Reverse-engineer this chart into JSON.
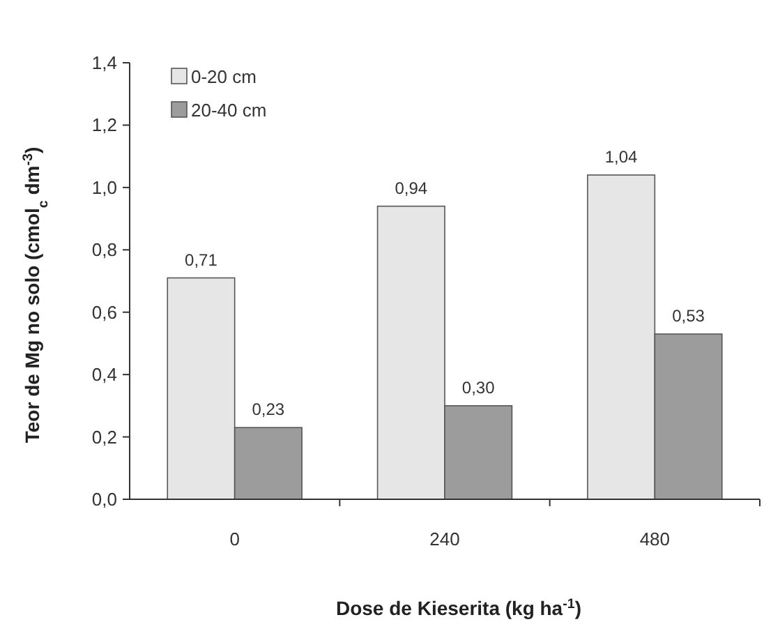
{
  "chart_data": {
    "type": "bar",
    "xlabel": "Dose de Kieserita (kg ha$^{-1}$)",
    "ylabel": "Teor de Mg no solo (cmol$_{c}$ dm$^{-3}$)",
    "categories": [
      "0",
      "240",
      "480"
    ],
    "series": [
      {
        "name": "0-20 cm",
        "color": "#e6e6e6",
        "values": [
          0.71,
          0.94,
          1.04
        ],
        "value_labels": [
          "0,71",
          "0,94",
          "1,04"
        ]
      },
      {
        "name": "20-40 cm",
        "color": "#9c9c9c",
        "values": [
          0.23,
          0.3,
          0.53
        ],
        "value_labels": [
          "0,23",
          "0,30",
          "0,53"
        ]
      }
    ],
    "ylim": [
      0,
      1.4
    ],
    "yticks": [
      {
        "value": 0,
        "label": "0,0"
      },
      {
        "value": 0.2,
        "label": "0,2"
      },
      {
        "value": 0.4,
        "label": "0,4"
      },
      {
        "value": 0.6,
        "label": "0,6"
      },
      {
        "value": 0.8,
        "label": "0,8"
      },
      {
        "value": 1.0,
        "label": "1,0"
      },
      {
        "value": 1.2,
        "label": "1,2"
      },
      {
        "value": 1.4,
        "label": "1,4"
      }
    ],
    "legend": "top left",
    "grid": false
  }
}
